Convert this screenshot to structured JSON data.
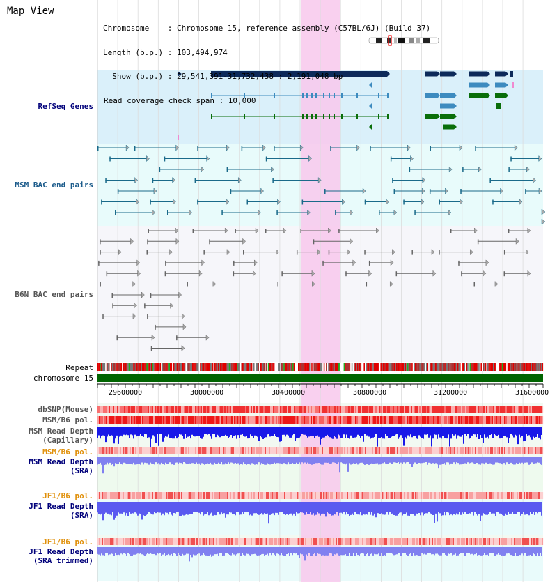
{
  "map_title": "Map View",
  "info": {
    "chromosome": "Chromosome    : Chromosome 15, reference assembly (C57BL/6J) (Build 37)",
    "length": "Length (b.p.) : 103,494,974",
    "show": "  Show (b.p.) : 29,541,391-31,732,438 : 2,191,048 bp",
    "coverage": "Read coverage check span : 10,000"
  },
  "tracks": {
    "refseq": "RefSeq Genes",
    "msm_bac": "MSM BAC end pairs",
    "b6n_bac": "B6N BAC end pairs",
    "repeat": "Repeat",
    "chrom": "chromosome 15",
    "dbsnp": "dbSNP(Mouse)",
    "msm_pol": "MSM/B6 pol.",
    "msm_depth_cap_1": "MSM Read Depth",
    "msm_depth_cap_2": "(Capillary)",
    "msm_pol_sra": "MSM/B6 pol.",
    "msm_depth_sra_1": "MSM Read Depth",
    "msm_depth_sra_2": "(SRA)",
    "jf1_pol": "JF1/B6 pol.",
    "jf1_depth_1": "JF1 Read Depth",
    "jf1_depth_2": "(SRA)",
    "jf1_pol_trim": "JF1/B6 pol.",
    "jf1_trim_1": "JF1 Read Depth",
    "jf1_trim_2": "(SRA trimmed)"
  },
  "axis": {
    "ticks": [
      "29600000",
      "30000000",
      "30400000",
      "30800000",
      "31200000",
      "31600000"
    ]
  },
  "colors": {
    "refseq_dark": "#0d2a5a",
    "refseq_light": "#3d8bbf",
    "refseq_green": "#0a6e0a",
    "msm_bac": "#1a6a8a",
    "b6n_bac": "#666666",
    "highlight": "#f8c8ec",
    "chrom_bar": "#006400",
    "label_blue": "#00007a",
    "label_teal": "#1a5a8a",
    "label_orange": "#e0900a",
    "label_gray": "#555555"
  }
}
